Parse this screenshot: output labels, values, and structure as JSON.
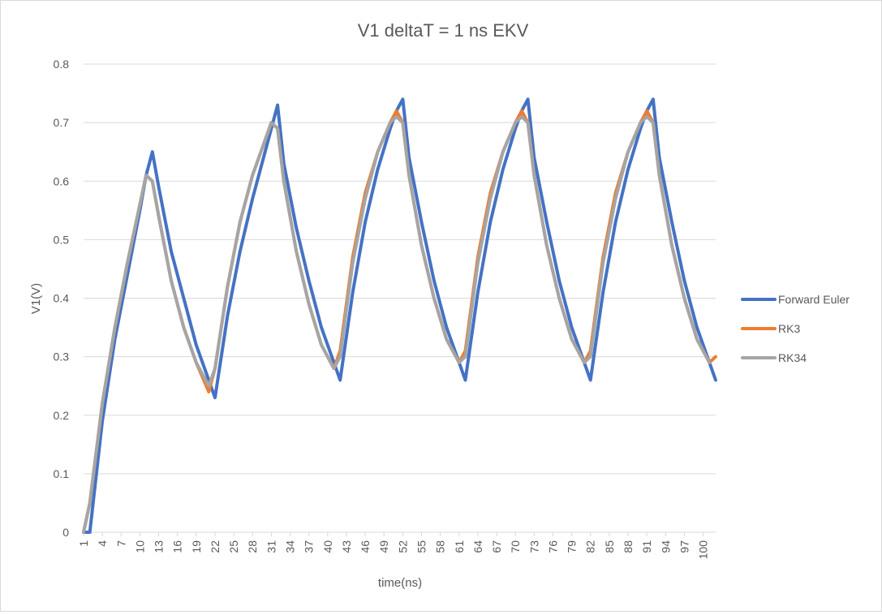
{
  "chart_data": {
    "type": "line",
    "title": "V1 deltaT = 1 ns EKV",
    "xlabel": "time(ns)",
    "ylabel": "V1(V)",
    "ylim": [
      0,
      0.8
    ],
    "yticks": [
      "0",
      "0.1",
      "0.2",
      "0.3",
      "0.4",
      "0.5",
      "0.6",
      "0.7",
      "0.8"
    ],
    "xlim": [
      1,
      102
    ],
    "xticks": [
      "1",
      "4",
      "7",
      "10",
      "13",
      "16",
      "19",
      "22",
      "25",
      "28",
      "31",
      "34",
      "37",
      "40",
      "43",
      "46",
      "49",
      "52",
      "55",
      "58",
      "61",
      "64",
      "67",
      "70",
      "73",
      "76",
      "79",
      "82",
      "85",
      "88",
      "91",
      "94",
      "97",
      "100"
    ],
    "grid": "horizontal",
    "legend_position": "right",
    "series": [
      {
        "name": "Forward Euler",
        "color": "#4472C4",
        "points": [
          [
            1,
            0
          ],
          [
            2,
            0
          ],
          [
            4,
            0.19
          ],
          [
            6,
            0.33
          ],
          [
            8,
            0.44
          ],
          [
            10,
            0.55
          ],
          [
            11,
            0.61
          ],
          [
            12,
            0.65
          ],
          [
            13,
            0.59
          ],
          [
            15,
            0.48
          ],
          [
            17,
            0.4
          ],
          [
            19,
            0.32
          ],
          [
            21,
            0.26
          ],
          [
            22,
            0.23
          ],
          [
            24,
            0.37
          ],
          [
            26,
            0.48
          ],
          [
            28,
            0.57
          ],
          [
            30,
            0.65
          ],
          [
            31,
            0.69
          ],
          [
            32,
            0.73
          ],
          [
            33,
            0.63
          ],
          [
            35,
            0.52
          ],
          [
            37,
            0.43
          ],
          [
            39,
            0.35
          ],
          [
            41,
            0.29
          ],
          [
            42,
            0.26
          ],
          [
            44,
            0.41
          ],
          [
            46,
            0.53
          ],
          [
            48,
            0.62
          ],
          [
            50,
            0.69
          ],
          [
            51,
            0.72
          ],
          [
            52,
            0.74
          ],
          [
            53,
            0.64
          ],
          [
            55,
            0.53
          ],
          [
            57,
            0.43
          ],
          [
            59,
            0.35
          ],
          [
            61,
            0.29
          ],
          [
            62,
            0.26
          ],
          [
            64,
            0.41
          ],
          [
            66,
            0.53
          ],
          [
            68,
            0.62
          ],
          [
            70,
            0.69
          ],
          [
            71,
            0.72
          ],
          [
            72,
            0.74
          ],
          [
            73,
            0.64
          ],
          [
            75,
            0.53
          ],
          [
            77,
            0.43
          ],
          [
            79,
            0.35
          ],
          [
            81,
            0.29
          ],
          [
            82,
            0.26
          ],
          [
            84,
            0.41
          ],
          [
            86,
            0.53
          ],
          [
            88,
            0.62
          ],
          [
            90,
            0.69
          ],
          [
            91,
            0.72
          ],
          [
            92,
            0.74
          ],
          [
            93,
            0.64
          ],
          [
            95,
            0.53
          ],
          [
            97,
            0.43
          ],
          [
            99,
            0.35
          ],
          [
            101,
            0.29
          ],
          [
            102,
            0.26
          ]
        ]
      },
      {
        "name": "RK3",
        "color": "#ED7D31",
        "points": [
          [
            1,
            0
          ],
          [
            2,
            0.05
          ],
          [
            4,
            0.22
          ],
          [
            6,
            0.35
          ],
          [
            8,
            0.46
          ],
          [
            10,
            0.56
          ],
          [
            11,
            0.61
          ],
          [
            12,
            0.6
          ],
          [
            13,
            0.54
          ],
          [
            15,
            0.43
          ],
          [
            17,
            0.35
          ],
          [
            19,
            0.29
          ],
          [
            21,
            0.24
          ],
          [
            22,
            0.28
          ],
          [
            24,
            0.42
          ],
          [
            26,
            0.53
          ],
          [
            28,
            0.61
          ],
          [
            30,
            0.67
          ],
          [
            31,
            0.7
          ],
          [
            32,
            0.69
          ],
          [
            33,
            0.6
          ],
          [
            35,
            0.48
          ],
          [
            37,
            0.39
          ],
          [
            39,
            0.32
          ],
          [
            41,
            0.28
          ],
          [
            42,
            0.31
          ],
          [
            44,
            0.47
          ],
          [
            46,
            0.58
          ],
          [
            48,
            0.65
          ],
          [
            50,
            0.7
          ],
          [
            51,
            0.72
          ],
          [
            52,
            0.7
          ],
          [
            53,
            0.61
          ],
          [
            55,
            0.49
          ],
          [
            57,
            0.4
          ],
          [
            59,
            0.33
          ],
          [
            61,
            0.29
          ],
          [
            62,
            0.31
          ],
          [
            64,
            0.47
          ],
          [
            66,
            0.58
          ],
          [
            68,
            0.65
          ],
          [
            70,
            0.7
          ],
          [
            71,
            0.72
          ],
          [
            72,
            0.7
          ],
          [
            73,
            0.61
          ],
          [
            75,
            0.49
          ],
          [
            77,
            0.4
          ],
          [
            79,
            0.33
          ],
          [
            81,
            0.29
          ],
          [
            82,
            0.31
          ],
          [
            84,
            0.47
          ],
          [
            86,
            0.58
          ],
          [
            88,
            0.65
          ],
          [
            90,
            0.7
          ],
          [
            91,
            0.72
          ],
          [
            92,
            0.7
          ],
          [
            93,
            0.61
          ],
          [
            95,
            0.49
          ],
          [
            97,
            0.4
          ],
          [
            99,
            0.33
          ],
          [
            101,
            0.29
          ],
          [
            102,
            0.3
          ]
        ]
      },
      {
        "name": "RK34",
        "color": "#A5A5A5",
        "points": [
          [
            1,
            0
          ],
          [
            2,
            0.05
          ],
          [
            4,
            0.22
          ],
          [
            6,
            0.35
          ],
          [
            8,
            0.46
          ],
          [
            10,
            0.56
          ],
          [
            11,
            0.61
          ],
          [
            12,
            0.6
          ],
          [
            13,
            0.54
          ],
          [
            15,
            0.43
          ],
          [
            17,
            0.35
          ],
          [
            19,
            0.29
          ],
          [
            21,
            0.25
          ],
          [
            22,
            0.28
          ],
          [
            24,
            0.42
          ],
          [
            26,
            0.53
          ],
          [
            28,
            0.61
          ],
          [
            30,
            0.67
          ],
          [
            31,
            0.7
          ],
          [
            32,
            0.69
          ],
          [
            33,
            0.6
          ],
          [
            35,
            0.48
          ],
          [
            37,
            0.39
          ],
          [
            39,
            0.32
          ],
          [
            41,
            0.28
          ],
          [
            42,
            0.3
          ],
          [
            44,
            0.46
          ],
          [
            46,
            0.57
          ],
          [
            48,
            0.65
          ],
          [
            50,
            0.7
          ],
          [
            51,
            0.71
          ],
          [
            52,
            0.7
          ],
          [
            53,
            0.61
          ],
          [
            55,
            0.49
          ],
          [
            57,
            0.4
          ],
          [
            59,
            0.33
          ],
          [
            61,
            0.29
          ],
          [
            62,
            0.3
          ],
          [
            64,
            0.46
          ],
          [
            66,
            0.57
          ],
          [
            68,
            0.65
          ],
          [
            70,
            0.7
          ],
          [
            71,
            0.71
          ],
          [
            72,
            0.7
          ],
          [
            73,
            0.61
          ],
          [
            75,
            0.49
          ],
          [
            77,
            0.4
          ],
          [
            79,
            0.33
          ],
          [
            81,
            0.29
          ],
          [
            82,
            0.3
          ],
          [
            84,
            0.46
          ],
          [
            86,
            0.57
          ],
          [
            88,
            0.65
          ],
          [
            90,
            0.7
          ],
          [
            91,
            0.71
          ],
          [
            92,
            0.7
          ],
          [
            93,
            0.61
          ],
          [
            95,
            0.49
          ],
          [
            97,
            0.4
          ],
          [
            99,
            0.33
          ],
          [
            101,
            0.29
          ]
        ]
      }
    ]
  }
}
